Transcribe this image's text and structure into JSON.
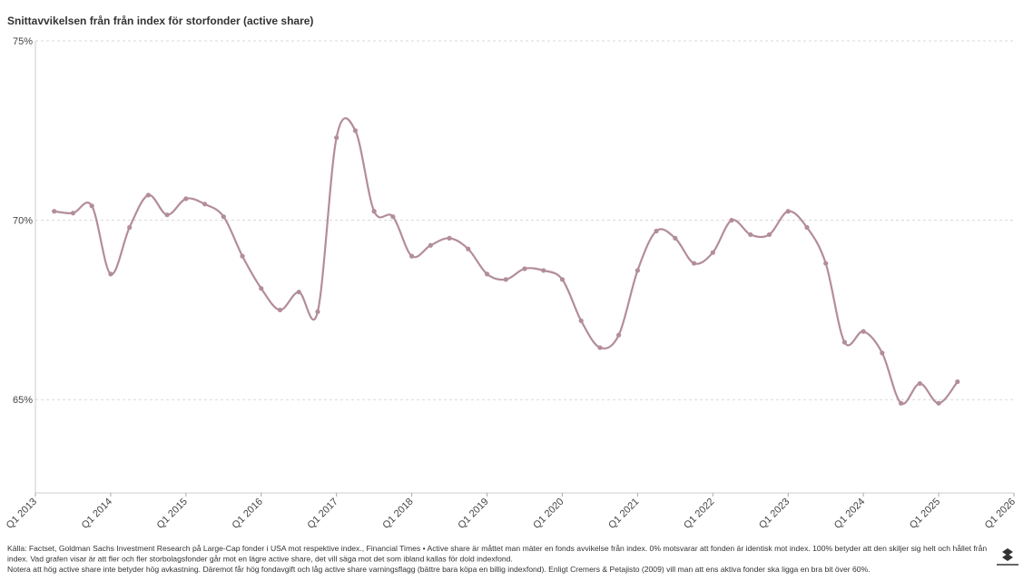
{
  "chart_data": {
    "type": "line",
    "title": "Snittavvikelsen från från index för storfonder (active share)",
    "x": [
      2013.25,
      2013.5,
      2013.75,
      2014,
      2014.25,
      2014.5,
      2014.75,
      2015,
      2015.25,
      2015.5,
      2015.75,
      2016,
      2016.25,
      2016.5,
      2016.75,
      2017,
      2017.25,
      2017.5,
      2017.75,
      2018,
      2018.25,
      2018.5,
      2018.75,
      2019,
      2019.25,
      2019.5,
      2019.75,
      2020,
      2020.25,
      2020.5,
      2020.75,
      2021,
      2021.25,
      2021.5,
      2021.75,
      2022,
      2022.25,
      2022.5,
      2022.75,
      2023,
      2023.25,
      2023.5,
      2023.75,
      2024,
      2024.25,
      2024.5,
      2024.75,
      2025,
      2025.25
    ],
    "series": [
      {
        "name": "Active share",
        "color": "#b38d99",
        "values": [
          70.25,
          70.2,
          70.4,
          68.5,
          69.8,
          70.7,
          70.15,
          70.6,
          70.45,
          70.1,
          69.0,
          68.1,
          67.5,
          68.0,
          67.45,
          72.3,
          72.5,
          70.25,
          70.1,
          69.0,
          69.3,
          69.5,
          69.2,
          68.5,
          68.35,
          68.65,
          68.6,
          68.35,
          67.2,
          66.45,
          66.8,
          68.6,
          69.7,
          69.5,
          68.8,
          69.1,
          70.0,
          69.6,
          69.6,
          70.25,
          69.8,
          68.8,
          66.6,
          66.9,
          66.3,
          64.9,
          65.45,
          64.9,
          65.5
        ]
      }
    ],
    "xlim": [
      2013,
      2026
    ],
    "xticks": [
      {
        "value": 2013,
        "label": "Q1 2013"
      },
      {
        "value": 2014,
        "label": "Q1 2014"
      },
      {
        "value": 2015,
        "label": "Q1 2015"
      },
      {
        "value": 2016,
        "label": "Q1 2016"
      },
      {
        "value": 2017,
        "label": "Q1 2017"
      },
      {
        "value": 2018,
        "label": "Q1 2018"
      },
      {
        "value": 2019,
        "label": "Q1 2019"
      },
      {
        "value": 2020,
        "label": "Q1 2020"
      },
      {
        "value": 2021,
        "label": "Q1 2021"
      },
      {
        "value": 2022,
        "label": "Q1 2022"
      },
      {
        "value": 2023,
        "label": "Q1 2023"
      },
      {
        "value": 2024,
        "label": "Q1 2024"
      },
      {
        "value": 2025,
        "label": "Q1 2025"
      },
      {
        "value": 2026,
        "label": "Q1 2026"
      }
    ],
    "ylim": [
      62.4,
      75
    ],
    "yticks": [
      {
        "value": 65,
        "label": "65%"
      },
      {
        "value": 70,
        "label": "70%"
      },
      {
        "value": 75,
        "label": "75%"
      }
    ],
    "grid": true,
    "notes": [
      "Källa: Factset, Goldman Sachs Investment Research på Large-Cap fonder i USA mot respektive index., Financial Times • Active share är måttet man mäter en fonds avvikelse från index. 0% motsvarar att fonden är identisk mot index. 100% betyder att den skiljer sig helt och hållet från",
      "index. Vad grafen visar är att fler och fler storbolagsfonder går mot en lägre active share, det vill säga mot det som ibland kallas för dold indexfond.",
      "Notera att hög active share inte betyder hög avkastning. Däremot får hög fondavgift och låg active share varningsflagg (bättre bara köpa en billig indexfond). Enligt Cremers & Petajisto (2009) vill man att ens aktiva fonder ska ligga en bra bit över 60%."
    ]
  }
}
